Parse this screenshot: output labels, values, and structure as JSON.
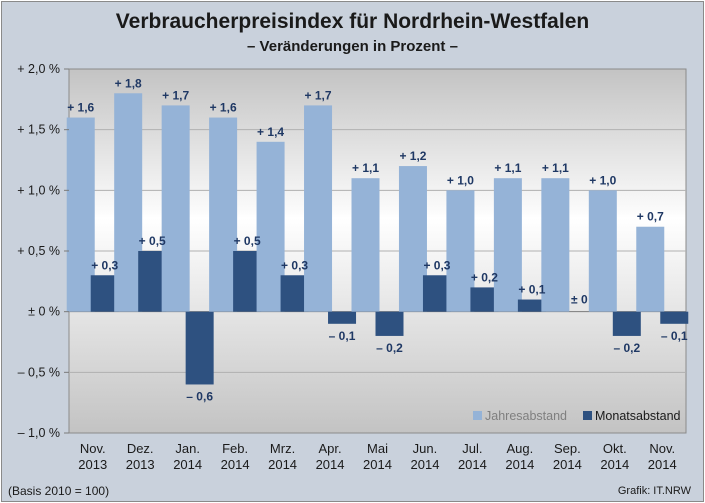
{
  "title": "Verbraucherpreisindex  für Nordrhein-Westfalen",
  "subtitle": "– Veränderungen in Prozent –",
  "footnote_left": "(Basis 2010 = 100)",
  "footnote_right": "Grafik: IT.NRW",
  "colors": {
    "jahres": "#95b3d7",
    "monats": "#2e5180",
    "label": "#1f3864",
    "background": "#c9d1dc"
  },
  "chart_data": {
    "type": "bar",
    "categories": [
      [
        "Nov.",
        "2013"
      ],
      [
        "Dez.",
        "2013"
      ],
      [
        "Jan.",
        "2014"
      ],
      [
        "Feb.",
        "2014"
      ],
      [
        "Mrz.",
        "2014"
      ],
      [
        "Apr.",
        "2014"
      ],
      [
        "Mai",
        "2014"
      ],
      [
        "Jun.",
        "2014"
      ],
      [
        "Jul.",
        "2014"
      ],
      [
        "Aug.",
        "2014"
      ],
      [
        "Sep.",
        "2014"
      ],
      [
        "Okt.",
        "2014"
      ],
      [
        "Nov.",
        "2014"
      ]
    ],
    "series": [
      {
        "name": "Jahresabstand",
        "values": [
          1.6,
          1.8,
          1.7,
          1.6,
          1.4,
          1.7,
          1.1,
          1.2,
          1.0,
          1.1,
          1.1,
          1.0,
          0.7
        ],
        "labels": [
          "+ 1,6",
          "+ 1,8",
          "+ 1,7",
          "+ 1,6",
          "+ 1,4",
          "+ 1,7",
          "+ 1,1",
          "+ 1,2",
          "+ 1,0",
          "+ 1,1",
          "+ 1,1",
          "+ 1,0",
          "+ 0,7"
        ]
      },
      {
        "name": "Monatsabstand",
        "values": [
          0.3,
          0.5,
          -0.6,
          0.5,
          0.3,
          -0.1,
          -0.2,
          0.3,
          0.2,
          0.1,
          0.0,
          -0.2,
          -0.1
        ],
        "labels": [
          "+ 0,3",
          "+ 0,5",
          "– 0,6",
          "+ 0,5",
          "+ 0,3",
          "– 0,1",
          "– 0,2",
          "+ 0,3",
          "+ 0,2",
          "+ 0,1",
          "± 0",
          "– 0,2",
          "– 0,1"
        ]
      }
    ],
    "ylim": [
      -1.0,
      2.0
    ],
    "yticks": [
      2.0,
      1.5,
      1.0,
      0.5,
      0.0,
      -0.5,
      -1.0
    ],
    "ytick_labels": [
      "+ 2,0 %",
      "+ 1,5 %",
      "+ 1,0 %",
      "+ 0,5 %",
      "± 0 %",
      "– 0,5 %",
      "– 1,0 %"
    ],
    "grid": true,
    "legend_position": "bottom-right"
  }
}
